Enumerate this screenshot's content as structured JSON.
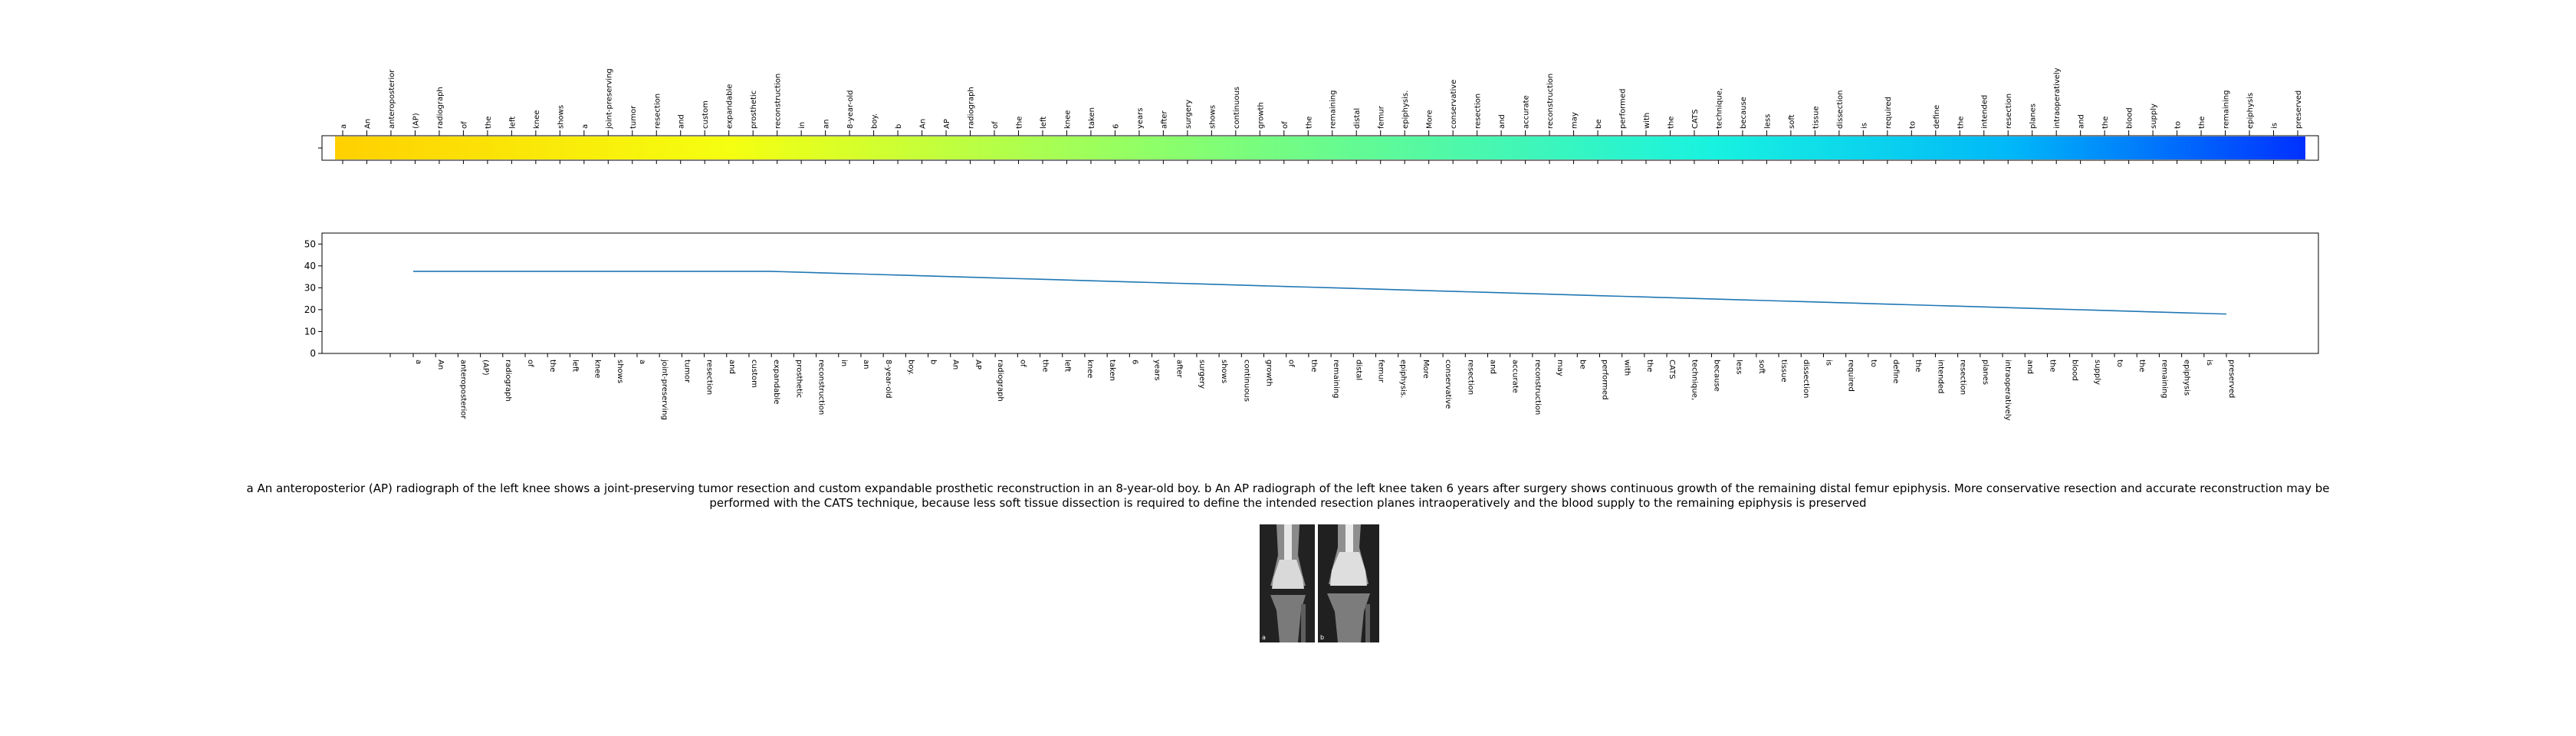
{
  "tokens": [
    "a",
    "An",
    "anteroposterior",
    "(AP)",
    "radiograph",
    "of",
    "the",
    "left",
    "knee",
    "shows",
    "a",
    "joint-preserving",
    "tumor",
    "resection",
    "and",
    "custom",
    "expandable",
    "prosthetic",
    "reconstruction",
    "in",
    "an",
    "8-year-old",
    "boy.",
    "b",
    "An",
    "AP",
    "radiograph",
    "of",
    "the",
    "left",
    "knee",
    "taken",
    "6",
    "years",
    "after",
    "surgery",
    "shows",
    "continuous",
    "growth",
    "of",
    "the",
    "remaining",
    "distal",
    "femur",
    "epiphysis.",
    "More",
    "conservative",
    "resection",
    "and",
    "accurate",
    "reconstruction",
    "may",
    "be",
    "performed",
    "with",
    "the",
    "CATS",
    "technique,",
    "because",
    "less",
    "soft",
    "tissue",
    "dissection",
    "is",
    "required",
    "to",
    "define",
    "the",
    "intended",
    "resection",
    "planes",
    "intraoperatively",
    "and",
    "the",
    "blood",
    "supply",
    "to",
    "the",
    "remaining",
    "epiphysis",
    "is",
    "preserved"
  ],
  "chart_data": [
    {
      "type": "heatmap",
      "colormap": "jet-like (yellow to green to cyan to blue)",
      "colors": {
        "start": "#ffd000",
        "mid1": "#f5ff10",
        "mid2": "#8cff6a",
        "mid3": "#18f2e0",
        "mid4": "#00b8f8",
        "end": "#0030ff"
      },
      "categories_ref": "tokens"
    },
    {
      "type": "line",
      "x_ref": "tokens",
      "values": [
        37.5,
        37.5,
        37.5,
        37.5,
        37.5,
        37.5,
        37.5,
        37.5,
        37.5,
        37.5,
        37.5,
        37.5,
        37.5,
        37.5,
        37.5,
        37.5,
        37.5,
        37.2,
        36.9,
        36.6,
        36.3,
        36.0,
        35.7,
        35.4,
        35.1,
        34.8,
        34.5,
        34.2,
        33.9,
        33.6,
        33.3,
        33.0,
        32.7,
        32.4,
        32.1,
        31.8,
        31.5,
        31.2,
        30.9,
        30.6,
        30.3,
        30.0,
        29.7,
        29.4,
        29.1,
        28.8,
        28.5,
        28.2,
        27.9,
        27.6,
        27.3,
        27.0,
        26.7,
        26.4,
        26.1,
        25.8,
        25.5,
        25.2,
        24.9,
        24.6,
        24.3,
        24.0,
        23.7,
        23.4,
        23.1,
        22.8,
        22.5,
        22.2,
        21.9,
        21.6,
        21.3,
        21.0,
        20.7,
        20.4,
        20.1,
        19.8,
        19.5,
        19.2,
        18.9,
        18.6,
        18.3,
        18.0
      ],
      "ylim": [
        0,
        55
      ],
      "yticks": [
        0,
        10,
        20,
        30,
        40,
        50
      ],
      "color": "#1f77b4",
      "grid": false
    }
  ],
  "caption": "a An anteroposterior (AP) radiograph of the left knee shows a joint-preserving tumor resection and custom expandable prosthetic reconstruction in an 8-year-old boy. b An AP radiograph of the left knee taken 6 years after surgery shows continuous growth of the remaining distal femur epiphysis. More conservative resection and accurate reconstruction may be performed with the CATS technique, because less soft tissue dissection is required to define the intended resection planes intraoperatively and the blood supply to the remaining epiphysis is preserved",
  "panels": [
    {
      "label": "a"
    },
    {
      "label": "b"
    }
  ]
}
